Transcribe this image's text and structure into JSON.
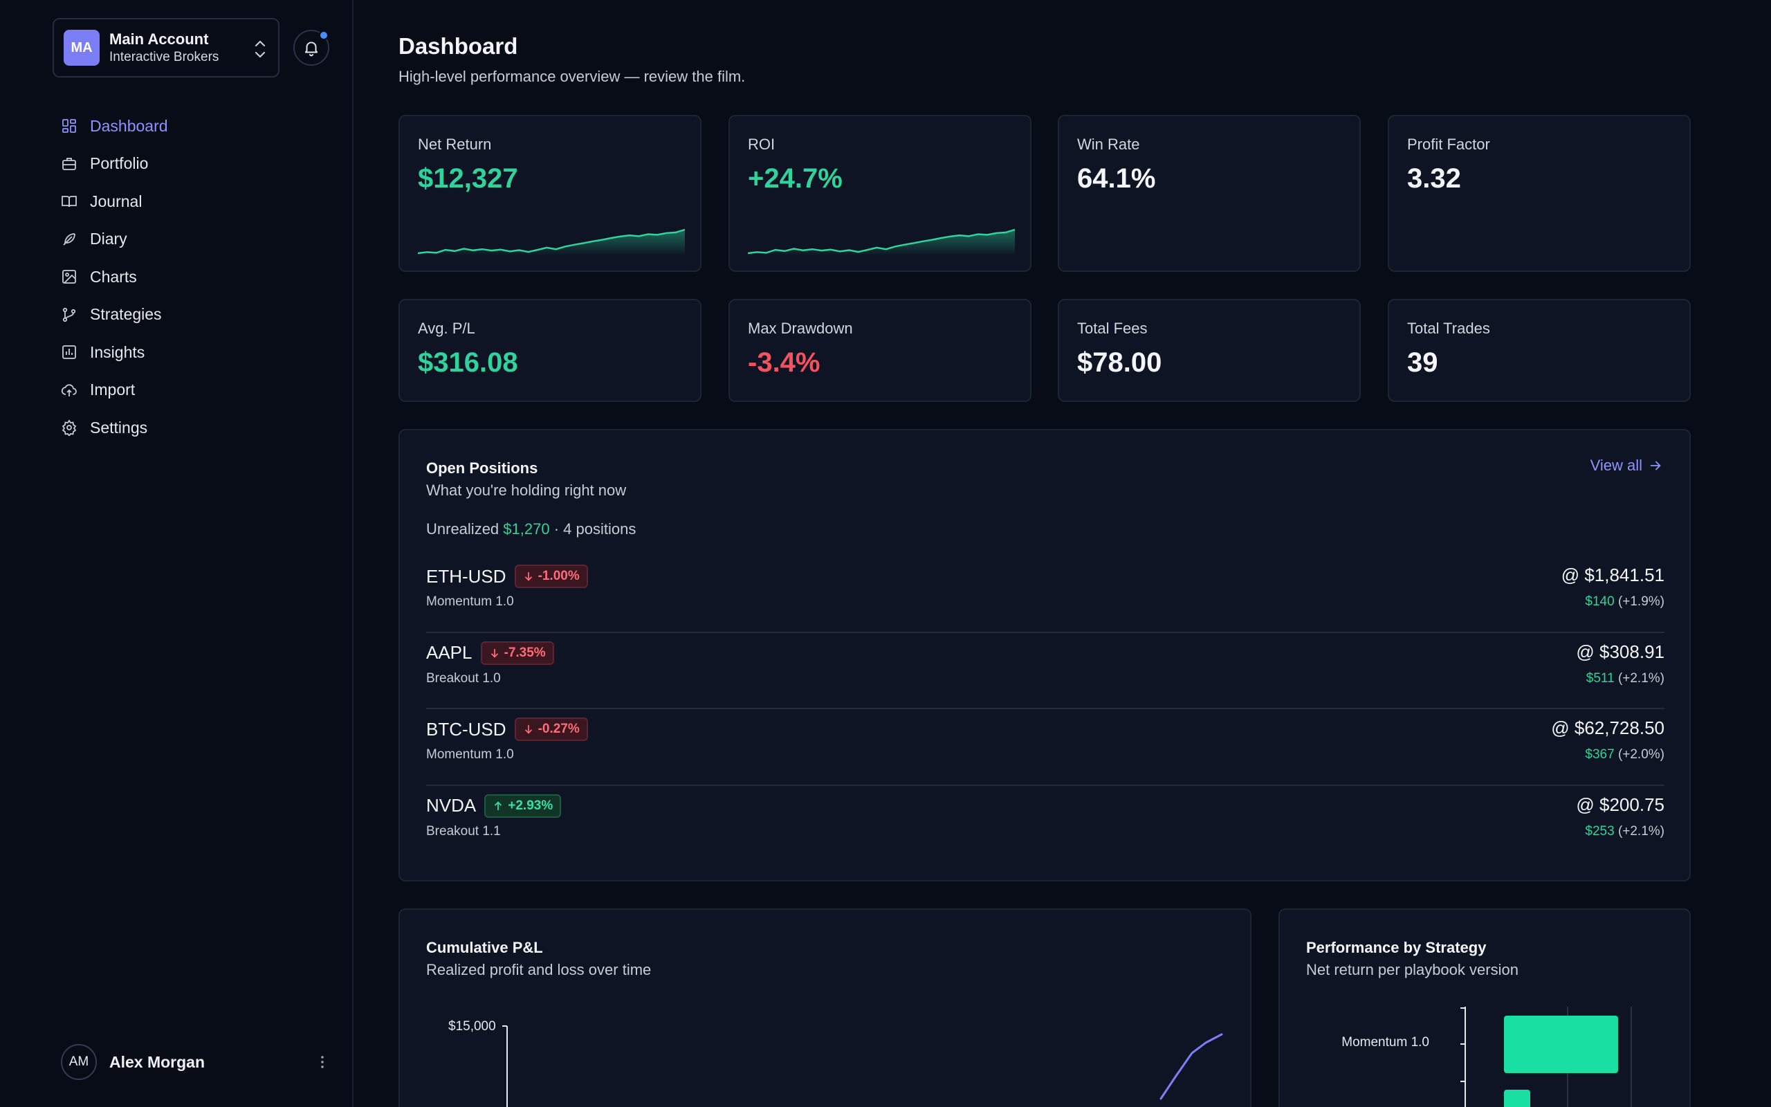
{
  "account": {
    "initials": "MA",
    "name": "Main Account",
    "broker": "Interactive Brokers"
  },
  "nav": [
    {
      "label": "Dashboard",
      "icon": "dashboard-icon",
      "active": true
    },
    {
      "label": "Portfolio",
      "icon": "briefcase-icon"
    },
    {
      "label": "Journal",
      "icon": "book-icon"
    },
    {
      "label": "Diary",
      "icon": "feather-icon"
    },
    {
      "label": "Charts",
      "icon": "image-icon"
    },
    {
      "label": "Strategies",
      "icon": "git-branch-icon"
    },
    {
      "label": "Insights",
      "icon": "bar-chart-icon"
    },
    {
      "label": "Import",
      "icon": "cloud-upload-icon"
    },
    {
      "label": "Settings",
      "icon": "gear-icon"
    }
  ],
  "user": {
    "initials": "AM",
    "name": "Alex Morgan"
  },
  "header": {
    "title": "Dashboard",
    "subtitle": "High-level performance overview — review the film."
  },
  "stats": {
    "net_return": {
      "label": "Net Return",
      "value": "$12,327"
    },
    "roi": {
      "label": "ROI",
      "value": "+24.7%"
    },
    "win_rate": {
      "label": "Win Rate",
      "value": "64.1%"
    },
    "profit_factor": {
      "label": "Profit Factor",
      "value": "3.32"
    },
    "avg_pl": {
      "label": "Avg. P/L",
      "value": "$316.08"
    },
    "max_drawdown": {
      "label": "Max Drawdown",
      "value": "-3.4%"
    },
    "total_fees": {
      "label": "Total Fees",
      "value": "$78.00"
    },
    "total_trades": {
      "label": "Total Trades",
      "value": "39"
    }
  },
  "open_positions": {
    "title": "Open Positions",
    "subtitle": "What you're holding right now",
    "view_all": "View all",
    "unrealized_label": "Unrealized",
    "unrealized_value": "$1,270",
    "count_text": "· 4 positions",
    "rows": [
      {
        "symbol": "ETH-USD",
        "change": "-1.00%",
        "direction": "down",
        "strategy": "Momentum 1.0",
        "price": "@ $1,841.51",
        "pnl": "$140",
        "pnl_pct": "(+1.9%)"
      },
      {
        "symbol": "AAPL",
        "change": "-7.35%",
        "direction": "down",
        "strategy": "Breakout 1.0",
        "price": "@ $308.91",
        "pnl": "$511",
        "pnl_pct": "(+2.1%)"
      },
      {
        "symbol": "BTC-USD",
        "change": "-0.27%",
        "direction": "down",
        "strategy": "Momentum 1.0",
        "price": "@ $62,728.50",
        "pnl": "$367",
        "pnl_pct": "(+2.0%)"
      },
      {
        "symbol": "NVDA",
        "change": "+2.93%",
        "direction": "up",
        "strategy": "Breakout 1.1",
        "price": "@ $200.75",
        "pnl": "$253",
        "pnl_pct": "(+2.1%)"
      }
    ]
  },
  "cumulative": {
    "title": "Cumulative P&L",
    "subtitle": "Realized profit and loss over time",
    "y_tick": "$15,000"
  },
  "strategy_perf": {
    "title": "Performance by Strategy",
    "subtitle": "Net return per playbook version",
    "first_label": "Momentum 1.0"
  },
  "colors": {
    "accent": "#8f93ff",
    "positive": "#2ed49b",
    "negative": "#f4525f",
    "line": "#7c7ef6"
  },
  "chart_data": [
    {
      "type": "area",
      "title": "",
      "note": "Net Return sparkline (upward trend)",
      "values": [
        3,
        3.5,
        3.2,
        4.5,
        4,
        5,
        4.3,
        4.8,
        4.2,
        4.6,
        3.8,
        4.4,
        3.6,
        4.5,
        5.5,
        4.8,
        6,
        6.8,
        7.5,
        8.3,
        9,
        9.8,
        10.5,
        11,
        10.6,
        11.5,
        11.2,
        12,
        12.3,
        13.5
      ]
    },
    {
      "type": "area",
      "title": "",
      "note": "ROI sparkline (upward trend)",
      "values": [
        3,
        3.5,
        3.2,
        4.5,
        4,
        5,
        4.3,
        4.8,
        4.2,
        4.6,
        3.8,
        4.4,
        3.6,
        4.5,
        5.5,
        4.8,
        6,
        6.8,
        7.5,
        8.3,
        9,
        9.8,
        10.5,
        11,
        10.6,
        11.5,
        11.2,
        12,
        12.3,
        13.5
      ]
    },
    {
      "type": "line",
      "title": "Cumulative P&L",
      "y_ticks": [
        "$15,000"
      ],
      "visible_values": [
        11500,
        12600,
        13700,
        14200,
        14600
      ]
    },
    {
      "type": "bar",
      "title": "Performance by Strategy",
      "categories": [
        "Momentum 1.0"
      ],
      "values": [
        1
      ]
    }
  ]
}
